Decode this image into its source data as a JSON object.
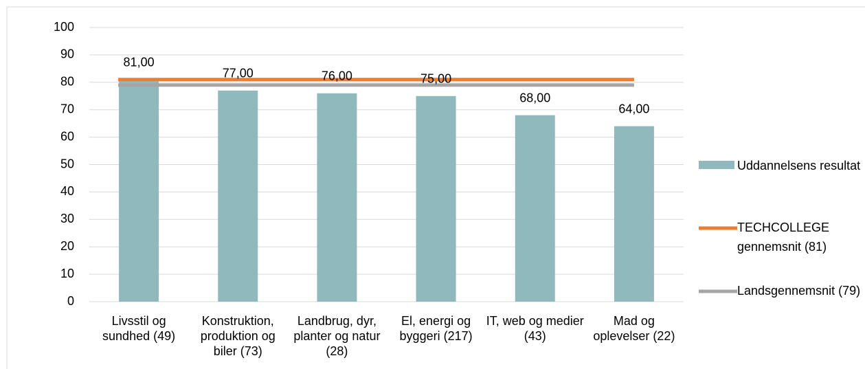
{
  "chart_data": {
    "type": "bar",
    "categories": [
      "Livsstil og sundhed (49)",
      "Konstruktion, produktion og biler (73)",
      "Landbrug, dyr, planter og natur (28)",
      "El, energi og byggeri (217)",
      "IT, web og medier (43)",
      "Mad og oplevelser (22)"
    ],
    "series": [
      {
        "name": "Uddannelsens resultat",
        "type": "bar",
        "color": "#8fb9bd",
        "values": [
          81,
          77,
          76,
          75,
          68,
          64
        ],
        "value_labels": [
          "81,00",
          "77,00",
          "76,00",
          "75,00",
          "68,00",
          "64,00"
        ]
      },
      {
        "name": "TECHCOLLEGE gennemsnit (81)",
        "type": "line",
        "color": "#ed7d31",
        "values": [
          81,
          81,
          81,
          81,
          81,
          81
        ]
      },
      {
        "name": "Landsgennemsnit (79)",
        "type": "line",
        "color": "#a5a5a5",
        "values": [
          79,
          79,
          79,
          79,
          79,
          79
        ]
      }
    ],
    "ylim": [
      0,
      100
    ],
    "yticks": [
      0,
      10,
      20,
      30,
      40,
      50,
      60,
      70,
      80,
      90,
      100
    ],
    "grid": true,
    "legend": "right"
  }
}
